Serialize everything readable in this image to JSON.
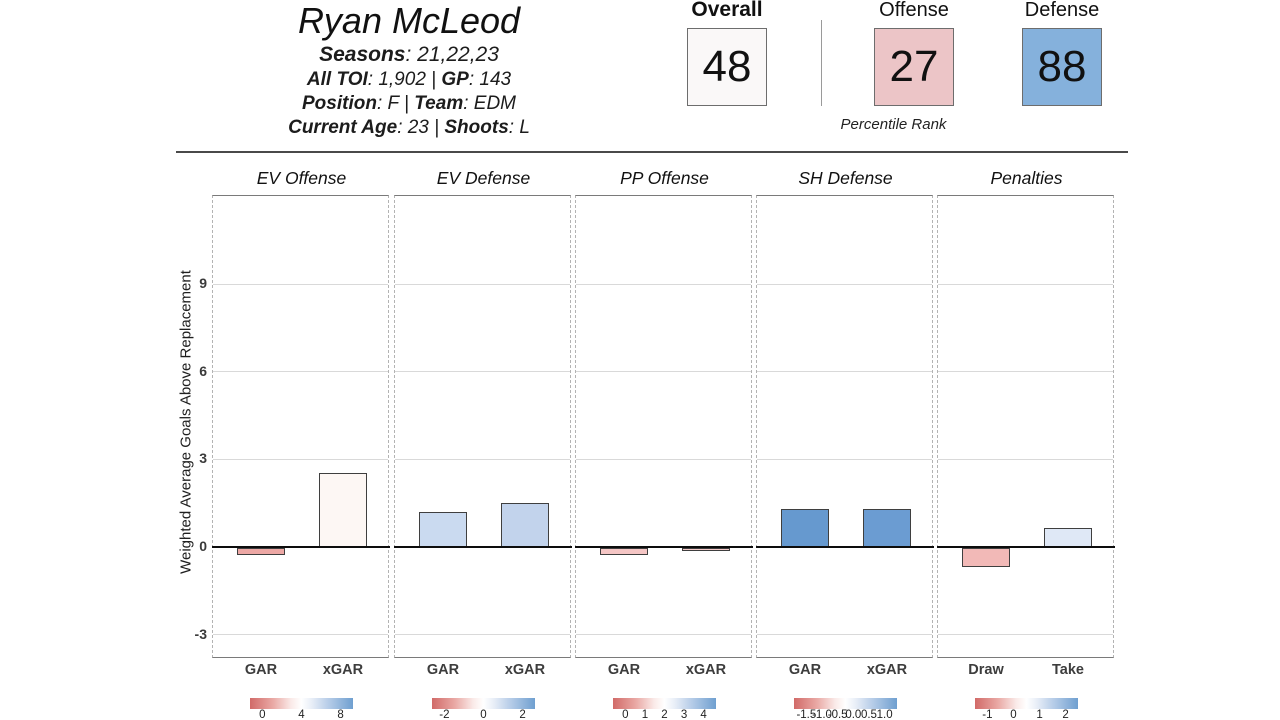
{
  "player": {
    "name": "Ryan McLeod",
    "info_lines": [
      {
        "size": "large",
        "segments": [
          {
            "text": "Seasons",
            "bold": true
          },
          {
            "text": ": 21,22,23",
            "bold": false
          }
        ]
      },
      {
        "size": "normal",
        "segments": [
          {
            "text": "All TOI",
            "bold": true
          },
          {
            "text": ": 1,902 | ",
            "bold": false
          },
          {
            "text": "GP",
            "bold": true
          },
          {
            "text": ": 143",
            "bold": false
          }
        ]
      },
      {
        "size": "normal",
        "segments": [
          {
            "text": "Position",
            "bold": true
          },
          {
            "text": ": F | ",
            "bold": false
          },
          {
            "text": "Team",
            "bold": true
          },
          {
            "text": ": EDM",
            "bold": false
          }
        ]
      },
      {
        "size": "normal",
        "segments": [
          {
            "text": "Current Age",
            "bold": true
          },
          {
            "text": ": 23 | ",
            "bold": false
          },
          {
            "text": "Shoots",
            "bold": true
          },
          {
            "text": ": L",
            "bold": false
          }
        ]
      }
    ]
  },
  "percentiles": {
    "caption": "Percentile Rank",
    "boxes": [
      {
        "label": "Overall",
        "value": "48",
        "fill": "#faf8f8",
        "emphasis": true
      },
      {
        "label": "Offense",
        "value": "27",
        "fill": "#ecc5c7",
        "emphasis": false
      },
      {
        "label": "Defense",
        "value": "88",
        "fill": "#85b1dc",
        "emphasis": false
      }
    ]
  },
  "chart_data": {
    "type": "bar",
    "title": "",
    "ylabel": "Weighted Average Goals Above Replacement",
    "ylim": [
      -3.85,
      12.05
    ],
    "yticks": [
      9,
      6,
      3,
      0,
      -3
    ],
    "gridlines": [
      9,
      6,
      3,
      -3
    ],
    "zero_line": true,
    "grid": "horizontal",
    "legend_position": "bottom-colorbar",
    "colorbar_colors": {
      "low": "#d16a68",
      "mid": "#ffffff",
      "high": "#6f9fd0"
    },
    "panels": [
      {
        "title": "EV Offense",
        "categories": [
          "GAR",
          "xGAR"
        ],
        "values": [
          -0.25,
          2.55
        ],
        "bar_colors": [
          "#eda8a5",
          "#fdf7f4"
        ],
        "colorbar_ticks": [
          "0",
          "4",
          "8"
        ]
      },
      {
        "title": "EV Defense",
        "categories": [
          "GAR",
          "xGAR"
        ],
        "values": [
          1.2,
          1.5
        ],
        "bar_colors": [
          "#cadaf0",
          "#c2d3ec"
        ],
        "colorbar_ticks": [
          "-2",
          "0",
          "2"
        ]
      },
      {
        "title": "PP Offense",
        "categories": [
          "GAR",
          "xGAR"
        ],
        "values": [
          -0.25,
          -0.1
        ],
        "bar_colors": [
          "#f5c6c5",
          "#f7cbca"
        ],
        "colorbar_ticks": [
          "0",
          "1",
          "2",
          "3",
          "4"
        ]
      },
      {
        "title": "SH Defense",
        "categories": [
          "GAR",
          "xGAR"
        ],
        "values": [
          1.3,
          1.3
        ],
        "bar_colors": [
          "#6699cf",
          "#6b9cd2"
        ],
        "colorbar_ticks": [
          "-1.5",
          "-1.0",
          "-0.5",
          "0.0",
          "0.5",
          "1.0"
        ]
      },
      {
        "title": "Penalties",
        "categories": [
          "Draw",
          "Take"
        ],
        "values": [
          -0.65,
          0.65
        ],
        "bar_colors": [
          "#f2b9b7",
          "#dfe8f6"
        ],
        "colorbar_ticks": [
          "-1",
          "0",
          "1",
          "2"
        ]
      }
    ]
  }
}
